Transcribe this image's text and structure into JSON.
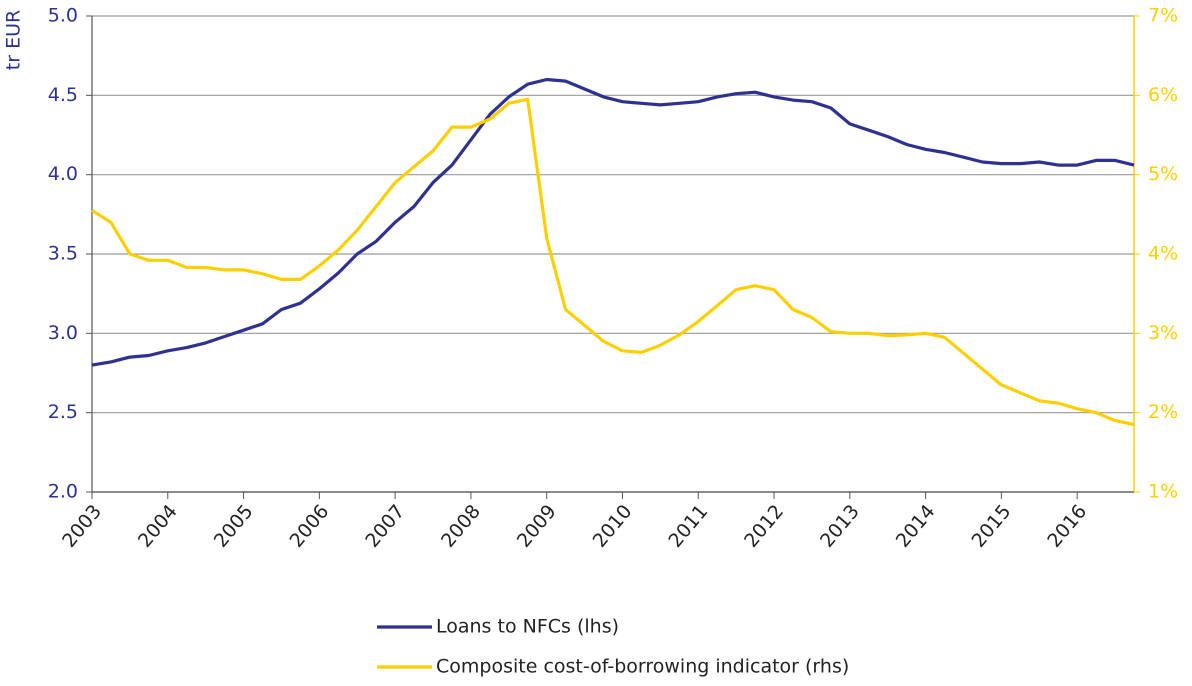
{
  "chart_data": {
    "type": "line",
    "ylabel": "tr EUR",
    "x": [
      2003.0,
      2003.25,
      2003.5,
      2003.75,
      2004.0,
      2004.25,
      2004.5,
      2004.75,
      2005.0,
      2005.25,
      2005.5,
      2005.75,
      2006.0,
      2006.25,
      2006.5,
      2006.75,
      2007.0,
      2007.25,
      2007.5,
      2007.75,
      2008.0,
      2008.25,
      2008.5,
      2008.75,
      2009.0,
      2009.25,
      2009.5,
      2009.75,
      2010.0,
      2010.25,
      2010.5,
      2010.75,
      2011.0,
      2011.25,
      2011.5,
      2011.75,
      2012.0,
      2012.25,
      2012.5,
      2012.75,
      2013.0,
      2013.25,
      2013.5,
      2013.75,
      2014.0,
      2014.25,
      2014.5,
      2014.75,
      2015.0,
      2015.25,
      2015.5,
      2015.75,
      2016.0,
      2016.25,
      2016.5,
      2016.75
    ],
    "series": [
      {
        "name": "Loans to NFCs (lhs)",
        "color": "#2e3192",
        "axis": "y",
        "values": [
          2.8,
          2.82,
          2.85,
          2.86,
          2.89,
          2.91,
          2.94,
          2.98,
          3.02,
          3.06,
          3.15,
          3.19,
          3.28,
          3.38,
          3.5,
          3.58,
          3.7,
          3.8,
          3.95,
          4.06,
          4.22,
          4.38,
          4.49,
          4.57,
          4.6,
          4.59,
          4.54,
          4.49,
          4.46,
          4.45,
          4.44,
          4.45,
          4.46,
          4.49,
          4.51,
          4.52,
          4.49,
          4.47,
          4.46,
          4.42,
          4.32,
          4.28,
          4.24,
          4.19,
          4.16,
          4.14,
          4.11,
          4.08,
          4.07,
          4.07,
          4.08,
          4.06,
          4.06,
          4.09,
          4.09,
          4.06
        ]
      },
      {
        "name": "Composite cost-of-borrowing indicator (rhs)",
        "color": "#fcd000",
        "axis": "y2",
        "values": [
          4.55,
          4.4,
          4.0,
          3.92,
          3.92,
          3.83,
          3.83,
          3.8,
          3.8,
          3.75,
          3.68,
          3.68,
          3.85,
          4.05,
          4.3,
          4.6,
          4.9,
          5.1,
          5.3,
          5.6,
          5.6,
          5.7,
          5.9,
          5.95,
          4.2,
          3.3,
          3.1,
          2.9,
          2.78,
          2.76,
          2.85,
          2.98,
          3.15,
          3.35,
          3.55,
          3.6,
          3.55,
          3.3,
          3.2,
          3.02,
          3.0,
          3.0,
          2.97,
          2.98,
          3.0,
          2.95,
          2.75,
          2.55,
          2.35,
          2.25,
          2.15,
          2.12,
          2.05,
          2.0,
          1.9,
          1.85
        ]
      }
    ],
    "xlim": [
      2003,
      2016.75
    ],
    "xticks": [
      2003,
      2004,
      2005,
      2006,
      2007,
      2008,
      2009,
      2010,
      2011,
      2012,
      2013,
      2014,
      2015,
      2016
    ],
    "ylim": [
      2,
      5
    ],
    "yticks": [
      {
        "value": 2,
        "label": "2.0"
      },
      2.5,
      {
        "value": 3,
        "label": "3.0"
      },
      3.5,
      {
        "value": 4,
        "label": "4.0"
      },
      4.5,
      {
        "value": 5,
        "label": "5.0"
      }
    ],
    "y2lim": [
      1,
      7
    ],
    "y2ticks": [
      {
        "value": 1,
        "label": "1%"
      },
      {
        "value": 2,
        "label": "2%"
      },
      {
        "value": 3,
        "label": "3%"
      },
      {
        "value": 4,
        "label": "4%"
      },
      {
        "value": 5,
        "label": "5%"
      },
      {
        "value": 6,
        "label": "6%"
      },
      {
        "value": 7,
        "label": "7%"
      }
    ],
    "grid": true,
    "legend": "bottom"
  }
}
